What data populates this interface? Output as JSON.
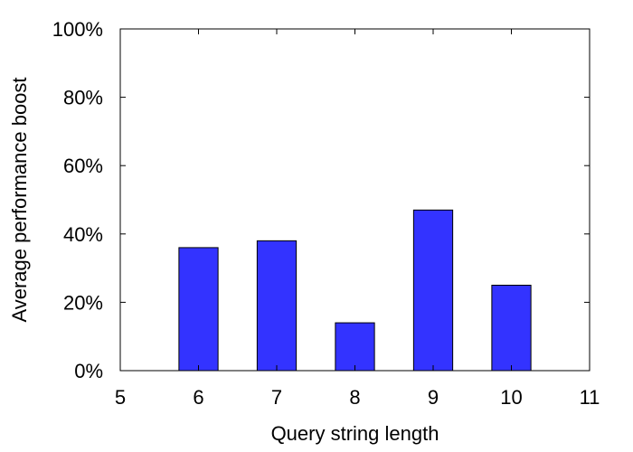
{
  "chart_data": {
    "type": "bar",
    "xlabel": "Query string length",
    "ylabel": "Average performance boost",
    "x": [
      6,
      7,
      8,
      9,
      10
    ],
    "values": [
      36,
      38,
      14,
      47,
      25
    ],
    "xlim": [
      5,
      11
    ],
    "ylim": [
      0,
      100
    ],
    "x_ticks": [
      "5",
      "6",
      "7",
      "8",
      "9",
      "10",
      "11"
    ],
    "y_ticks": [
      "0%",
      "20%",
      "40%",
      "60%",
      "80%",
      "100%"
    ],
    "bar_color": "#3333ff",
    "grid": false,
    "legend": "none"
  }
}
